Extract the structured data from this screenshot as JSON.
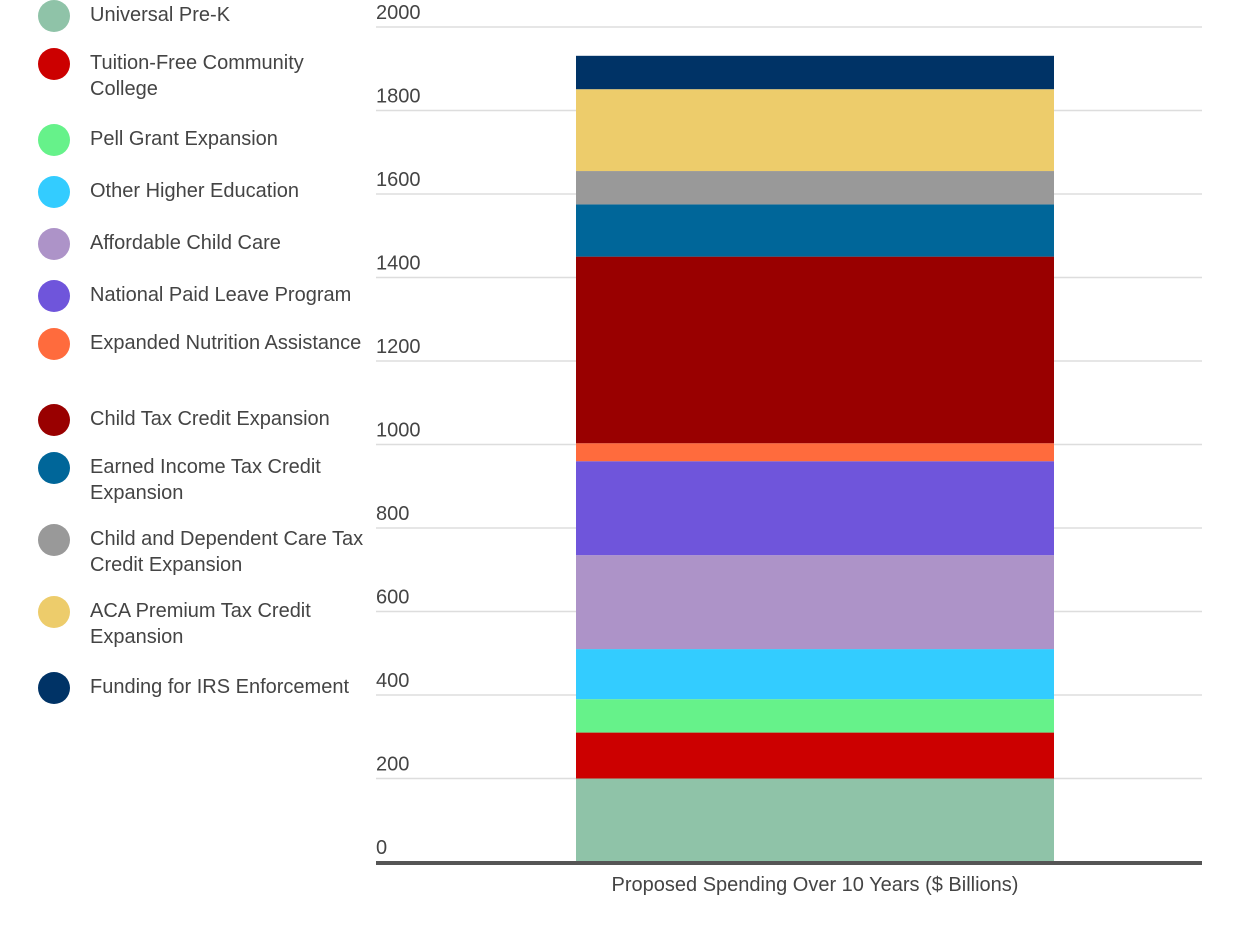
{
  "chart_data": {
    "type": "bar",
    "stacked": true,
    "categories": [
      "Proposed Spending Over 10 Years ($ Billions)"
    ],
    "xlabel": "",
    "ylabel": "",
    "ylim": [
      0,
      2000
    ],
    "yticks": [
      0,
      200,
      400,
      600,
      800,
      1000,
      1200,
      1400,
      1600,
      1800,
      2000
    ],
    "grid": true,
    "legend_position": "left",
    "series": [
      {
        "name": "Universal Pre-K",
        "color": "#8FC3A8",
        "values": [
          200
        ]
      },
      {
        "name": "Tuition-Free Community College",
        "color": "#CC0000",
        "values": [
          110
        ]
      },
      {
        "name": "Pell Grant Expansion",
        "color": "#66F28A",
        "values": [
          80
        ]
      },
      {
        "name": "Other Higher Education",
        "color": "#33CCFF",
        "values": [
          120
        ]
      },
      {
        "name": "Affordable Child Care",
        "color": "#AD93C8",
        "values": [
          225
        ]
      },
      {
        "name": "National Paid Leave Program",
        "color": "#6F55DB",
        "values": [
          225
        ]
      },
      {
        "name": "Expanded Nutrition Assistance",
        "color": "#FF6B3D",
        "values": [
          43
        ]
      },
      {
        "name": "Child Tax Credit Expansion",
        "color": "#990000",
        "values": [
          447
        ]
      },
      {
        "name": "Earned Income Tax Credit Expansion",
        "color": "#006699",
        "values": [
          125
        ]
      },
      {
        "name": "Child and Dependent Care Tax Credit Expansion",
        "color": "#999999",
        "values": [
          80
        ]
      },
      {
        "name": "ACA Premium Tax Credit Expansion",
        "color": "#EDCC6B",
        "values": [
          196
        ]
      },
      {
        "name": "Funding for IRS Enforcement",
        "color": "#003366",
        "values": [
          80
        ]
      }
    ]
  }
}
